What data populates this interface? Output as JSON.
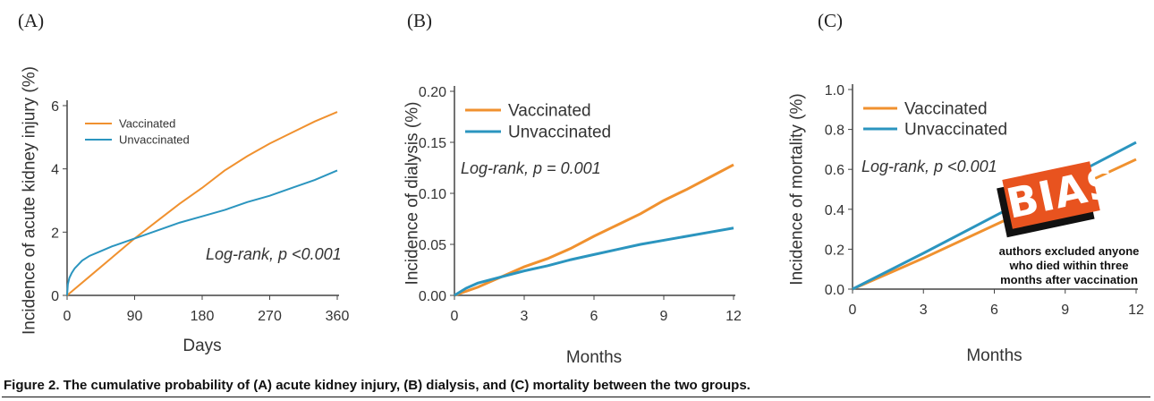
{
  "colors": {
    "vaccinated": "#f0912f",
    "unvaccinated": "#2b95bf",
    "axis": "#444"
  },
  "caption": "Figure 2. The cumulative probability of (A) acute kidney injury, (B) dialysis, and (C) mortality between the two groups.",
  "sticker": {
    "label": "BIAS",
    "note": "authors excluded anyone who died within three months after vaccination"
  },
  "chart_data": [
    {
      "panel": "(A)",
      "type": "line",
      "xlabel": "Days",
      "ylabel": "Incidence of acute kidney injury (%)",
      "xlim": [
        0,
        360
      ],
      "ylim": [
        0,
        6
      ],
      "xticks": [
        0,
        90,
        180,
        270,
        360
      ],
      "yticks": [
        0,
        2,
        4,
        6
      ],
      "ytick_labels": [
        "0",
        "2",
        "4",
        "6"
      ],
      "annotation": "Log-rank, p <0.001",
      "legend": [
        "Vaccinated",
        "Unvaccinated"
      ],
      "series": [
        {
          "name": "Vaccinated",
          "x": [
            0,
            30,
            60,
            90,
            120,
            150,
            180,
            210,
            240,
            270,
            300,
            330,
            360
          ],
          "y": [
            0,
            0.6,
            1.2,
            1.8,
            2.35,
            2.9,
            3.4,
            3.95,
            4.4,
            4.8,
            5.15,
            5.5,
            5.8
          ]
        },
        {
          "name": "Unvaccinated",
          "x": [
            0,
            1,
            3,
            6,
            10,
            20,
            30,
            45,
            60,
            90,
            120,
            150,
            180,
            210,
            240,
            270,
            300,
            330,
            360
          ],
          "y": [
            0,
            0.35,
            0.55,
            0.7,
            0.85,
            1.1,
            1.25,
            1.4,
            1.55,
            1.8,
            2.05,
            2.3,
            2.5,
            2.7,
            2.95,
            3.15,
            3.4,
            3.65,
            3.95
          ]
        }
      ]
    },
    {
      "panel": "(B)",
      "type": "line",
      "xlabel": "Months",
      "ylabel": "Incidence of dialysis (%)",
      "xlim": [
        0,
        12
      ],
      "ylim": [
        0,
        0.2
      ],
      "xticks": [
        0,
        3,
        6,
        9,
        12
      ],
      "yticks": [
        0,
        0.05,
        0.1,
        0.15,
        0.2
      ],
      "ytick_labels": [
        "0.00",
        "0.05",
        "0.10",
        "0.15",
        "0.20"
      ],
      "annotation": "Log-rank, p = 0.001",
      "legend": [
        "Vaccinated",
        "Unvaccinated"
      ],
      "series": [
        {
          "name": "Vaccinated",
          "x": [
            0,
            1,
            2,
            3,
            4,
            5,
            6,
            7,
            8,
            9,
            10,
            11,
            12
          ],
          "y": [
            0,
            0.008,
            0.018,
            0.028,
            0.036,
            0.046,
            0.058,
            0.069,
            0.08,
            0.093,
            0.104,
            0.116,
            0.128
          ]
        },
        {
          "name": "Unvaccinated",
          "x": [
            0,
            0.5,
            1,
            2,
            3,
            4,
            5,
            6,
            7,
            8,
            9,
            10,
            11,
            12
          ],
          "y": [
            0,
            0.007,
            0.012,
            0.018,
            0.024,
            0.029,
            0.035,
            0.04,
            0.045,
            0.05,
            0.054,
            0.058,
            0.062,
            0.066
          ]
        }
      ]
    },
    {
      "panel": "(C)",
      "type": "line",
      "xlabel": "Months",
      "ylabel": "Incidence of mortality (%)",
      "xlim": [
        0,
        12
      ],
      "ylim": [
        0,
        1
      ],
      "xticks": [
        0,
        3,
        6,
        9,
        12
      ],
      "yticks": [
        0,
        0.2,
        0.4,
        0.6,
        0.8,
        1
      ],
      "ytick_labels": [
        "0.0",
        "0.2",
        "0.4",
        "0.6",
        "0.8",
        "1.0"
      ],
      "annotation": "Log-rank, p <0.001",
      "legend": [
        "Vaccinated",
        "Unvaccinated"
      ],
      "series": [
        {
          "name": "Vaccinated",
          "x": [
            0,
            3,
            6,
            9,
            12
          ],
          "y": [
            0,
            0.155,
            0.32,
            0.485,
            0.65
          ]
        },
        {
          "name": "Unvaccinated",
          "x": [
            0,
            3,
            6,
            9,
            12
          ],
          "y": [
            0,
            0.18,
            0.365,
            0.55,
            0.735
          ]
        }
      ]
    }
  ]
}
